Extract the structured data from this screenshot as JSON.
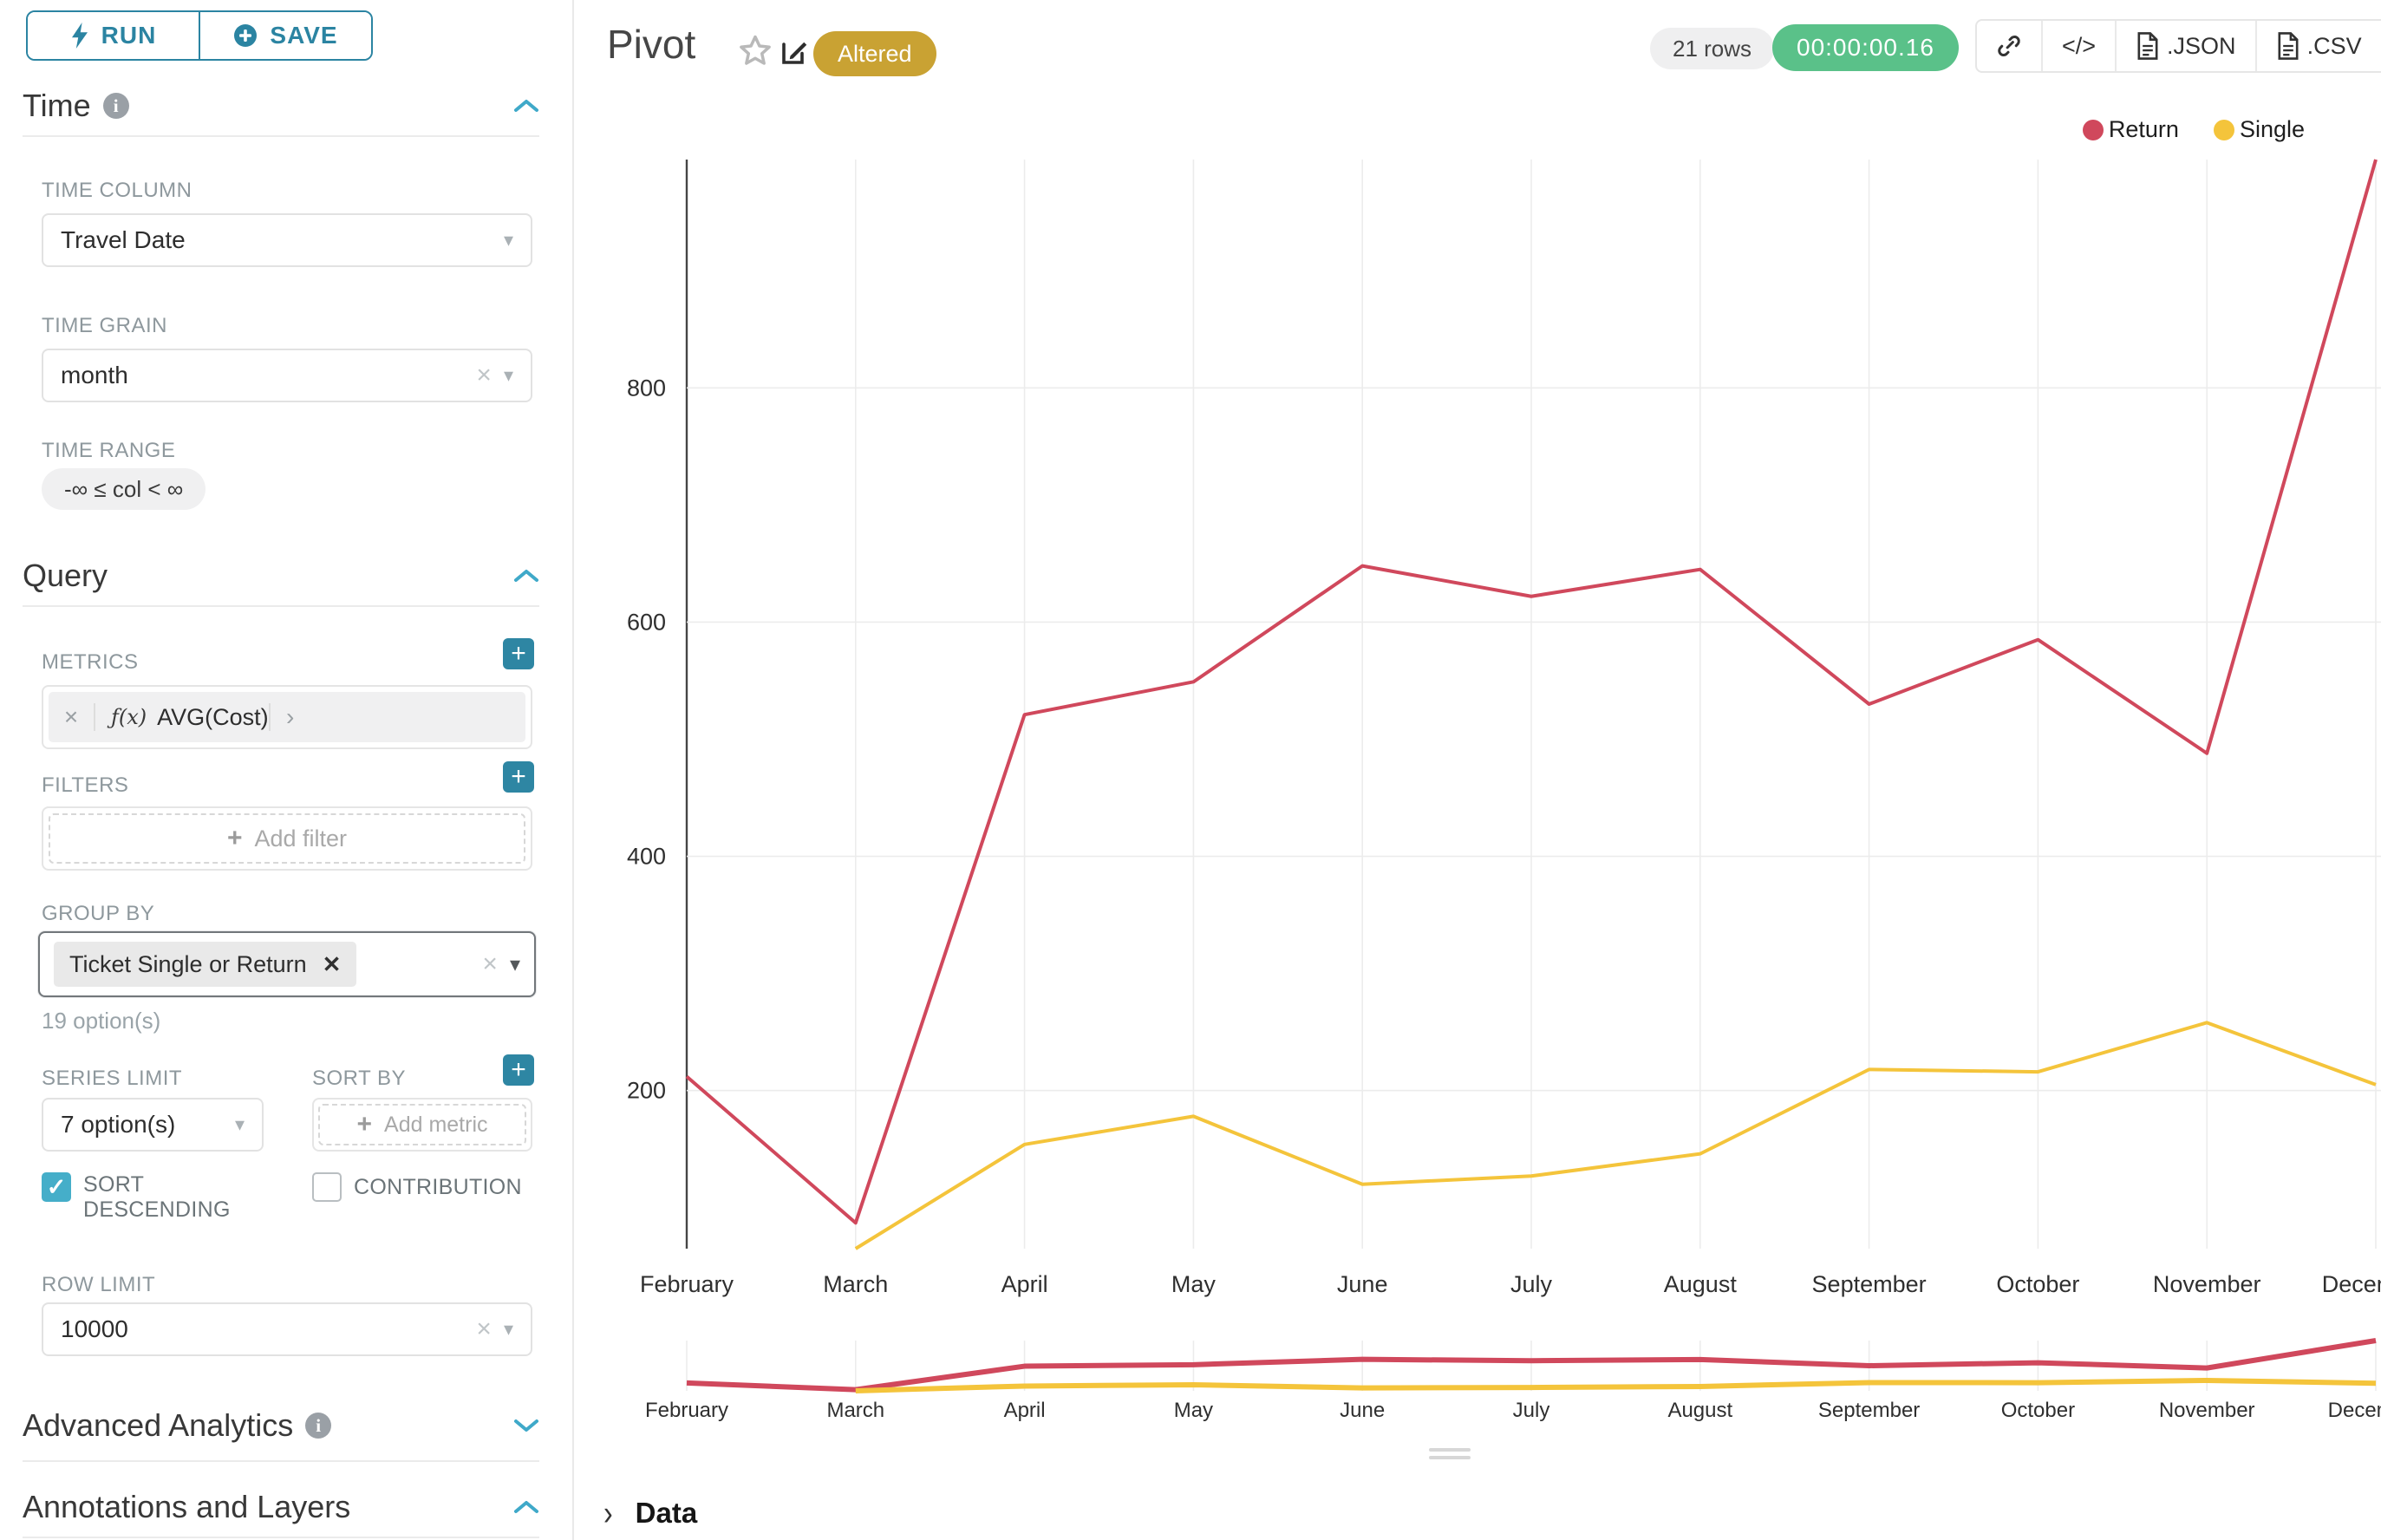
{
  "sidebar": {
    "run_label": "RUN",
    "save_label": "SAVE",
    "time_section": "Time",
    "query_section": "Query",
    "advanced_section": "Advanced Analytics",
    "annotations_section": "Annotations and Layers",
    "time_column": {
      "label": "TIME COLUMN",
      "value": "Travel Date"
    },
    "time_grain": {
      "label": "TIME GRAIN",
      "value": "month"
    },
    "time_range": {
      "label": "TIME RANGE",
      "value": "-∞ ≤ col < ∞"
    },
    "metrics": {
      "label": "METRICS",
      "fx": "ƒ(x)",
      "value": "AVG(Cost)"
    },
    "filters": {
      "label": "FILTERS",
      "placeholder": "Add filter"
    },
    "group_by": {
      "label": "GROUP BY",
      "tag": "Ticket Single or Return",
      "hint": "19 option(s)"
    },
    "series_limit": {
      "label": "SERIES LIMIT",
      "value": "7 option(s)"
    },
    "sort_by": {
      "label": "SORT BY",
      "placeholder": "Add metric"
    },
    "sort_descending_label": "SORT DESCENDING",
    "contribution_label": "CONTRIBUTION",
    "row_limit": {
      "label": "ROW LIMIT",
      "value": "10000"
    }
  },
  "header": {
    "title": "Pivot",
    "altered_badge": "Altered",
    "rows_badge": "21 rows",
    "timer": "00:00:00.16",
    "code_label": "</>",
    "json_label": ".JSON",
    "csv_label": ".CSV"
  },
  "footer": {
    "data_label": "Data"
  },
  "colors": {
    "primary_teal": "#2b84a2",
    "plus_button": "#2e86a3",
    "checkbox": "#45aec9",
    "chevron": "#3fa9c9",
    "altered_badge": "#c9a233",
    "timer_green": "#5ac189",
    "return_red": "#d0485c",
    "single_yellow": "#f4c43b"
  },
  "chart_data": {
    "type": "line",
    "title": "Pivot",
    "xlabel": "",
    "ylabel": "",
    "categories": [
      "February",
      "March",
      "April",
      "May",
      "June",
      "July",
      "August",
      "September",
      "October",
      "November",
      "December"
    ],
    "series": [
      {
        "name": "Return",
        "color": "#d0485c",
        "values": [
          212,
          87,
          521,
          549,
          648,
          622,
          645,
          530,
          585,
          488,
          995
        ]
      },
      {
        "name": "Single",
        "color": "#f4c43b",
        "values": [
          null,
          65,
          154,
          178,
          120,
          127,
          146,
          218,
          216,
          258,
          205
        ]
      }
    ],
    "yticks": [
      200,
      400,
      600,
      800
    ],
    "ylim": [
      65,
      995
    ],
    "grid": true,
    "legend_position": "top-right",
    "has_preview_brush": true
  }
}
